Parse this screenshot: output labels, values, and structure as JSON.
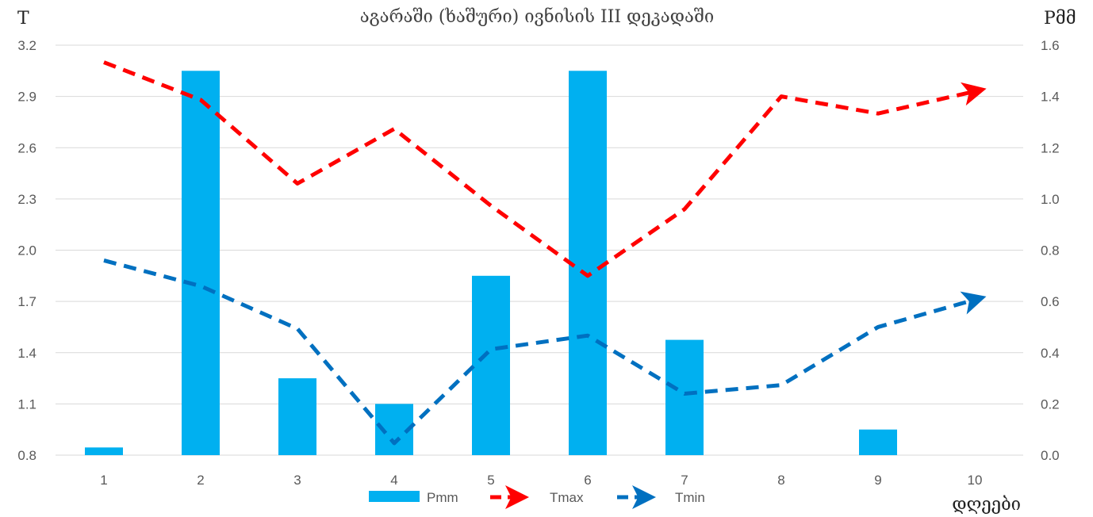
{
  "chart_data": {
    "type": "bar",
    "title": "აგარაში (ხაშური)  ივნისის III დეკადაში",
    "xlabel": "დღეები",
    "ylabel_left": "T",
    "ylabel_right": "Pმმ",
    "categories": [
      "1",
      "2",
      "3",
      "4",
      "5",
      "6",
      "7",
      "8",
      "9",
      "10"
    ],
    "y_left": {
      "min": 0.8,
      "max": 3.2,
      "ticks": [
        "0.8",
        "1.1",
        "1.4",
        "1.7",
        "2.0",
        "2.3",
        "2.6",
        "2.9",
        "3.2"
      ]
    },
    "y_right": {
      "min": 0.0,
      "max": 1.6,
      "ticks": [
        "0.0",
        "0.2",
        "0.4",
        "0.6",
        "0.8",
        "1.0",
        "1.2",
        "1.4",
        "1.6"
      ]
    },
    "grid": true,
    "legend_position": "bottom",
    "series": [
      {
        "name": "Pmm",
        "kind": "bar",
        "axis": "right",
        "color": "#00b0f0",
        "values": [
          0.03,
          1.5,
          0.3,
          0.2,
          0.7,
          1.5,
          0.45,
          0.0,
          0.1,
          0.0
        ]
      },
      {
        "name": "Tmax",
        "kind": "line",
        "axis": "left",
        "color": "#ff0000",
        "dashed": true,
        "arrow": true,
        "values": [
          3.1,
          2.88,
          2.39,
          2.71,
          2.26,
          1.85,
          2.24,
          2.9,
          2.8,
          2.93
        ]
      },
      {
        "name": "Tmin",
        "kind": "line",
        "axis": "left",
        "color": "#0070c0",
        "dashed": true,
        "arrow": true,
        "values": [
          1.94,
          1.79,
          1.54,
          0.87,
          1.42,
          1.5,
          1.16,
          1.21,
          1.55,
          1.71
        ]
      }
    ]
  }
}
